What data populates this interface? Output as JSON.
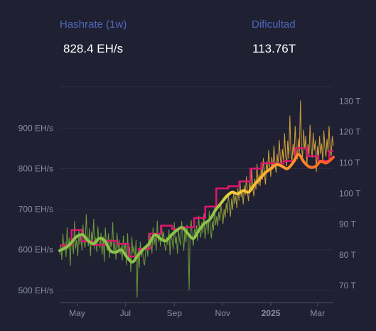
{
  "stats": [
    {
      "label": "Hashrate (1w)",
      "value": "828.4 EH/s"
    },
    {
      "label": "Dificultad",
      "value": "113.76T"
    }
  ],
  "colors": {
    "background": "#1f2133",
    "label_link": "#4f66b8",
    "grid": "#2c2f42",
    "axis_text": "#8a8da3",
    "difficulty_line": "#e0166f",
    "hashrate_raw_low": "#7cae3a",
    "hashrate_raw_high": "#f2b43a",
    "hashrate_avg_low": "#8bc34a",
    "hashrate_avg_mid": "#f5d23c",
    "hashrate_avg_high": "#ff5a1f"
  },
  "chart_data": {
    "type": "line",
    "x_axis": {
      "type": "date",
      "range": [
        "2024-04-09",
        "2025-03-21"
      ],
      "ticks": [
        "May",
        "Jul",
        "Sep",
        "Nov",
        "2025",
        "Mar"
      ],
      "tick_dates": [
        "2024-05-01",
        "2024-07-01",
        "2024-09-01",
        "2024-11-01",
        "2025-01-01",
        "2025-03-01"
      ]
    },
    "y_left": {
      "ticks": [
        "500 EH/s",
        "600 EH/s",
        "700 EH/s",
        "800 EH/s",
        "900 EH/s"
      ],
      "tick_values": [
        500,
        600,
        700,
        800,
        900
      ],
      "range": [
        470,
        1002
      ],
      "unit": "EH/s"
    },
    "y_right": {
      "ticks": [
        "70 T",
        "80 T",
        "90 T",
        "100 T",
        "110 T",
        "120 T",
        "130 T"
      ],
      "tick_values": [
        70,
        80,
        90,
        100,
        110,
        120,
        130
      ],
      "range": [
        64.5,
        134.7
      ],
      "unit": "T"
    },
    "grid": true,
    "series": [
      {
        "key": "hashrate_avg",
        "axis": "left",
        "style": "thick-gradient",
        "points": [
          [
            "2024-04-09",
            598
          ],
          [
            "2024-04-20",
            610
          ],
          [
            "2024-04-30",
            632
          ],
          [
            "2024-05-08",
            637
          ],
          [
            "2024-05-15",
            622
          ],
          [
            "2024-05-22",
            615
          ],
          [
            "2024-05-29",
            628
          ],
          [
            "2024-06-05",
            622
          ],
          [
            "2024-06-12",
            598
          ],
          [
            "2024-06-19",
            594
          ],
          [
            "2024-06-26",
            600
          ],
          [
            "2024-07-03",
            582
          ],
          [
            "2024-07-10",
            570
          ],
          [
            "2024-07-17",
            587
          ],
          [
            "2024-07-24",
            602
          ],
          [
            "2024-07-31",
            615
          ],
          [
            "2024-08-07",
            637
          ],
          [
            "2024-08-14",
            628
          ],
          [
            "2024-08-21",
            622
          ],
          [
            "2024-08-28",
            636
          ],
          [
            "2024-09-04",
            648
          ],
          [
            "2024-09-11",
            655
          ],
          [
            "2024-09-18",
            640
          ],
          [
            "2024-09-25",
            628
          ],
          [
            "2024-10-02",
            648
          ],
          [
            "2024-10-09",
            665
          ],
          [
            "2024-10-16",
            675
          ],
          [
            "2024-10-23",
            698
          ],
          [
            "2024-10-30",
            715
          ],
          [
            "2024-11-06",
            732
          ],
          [
            "2024-11-13",
            742
          ],
          [
            "2024-11-20",
            738
          ],
          [
            "2024-11-27",
            746
          ],
          [
            "2024-12-04",
            742
          ],
          [
            "2024-12-11",
            760
          ],
          [
            "2024-12-18",
            775
          ],
          [
            "2024-12-25",
            790
          ],
          [
            "2025-01-01",
            800
          ],
          [
            "2025-01-08",
            810
          ],
          [
            "2025-01-15",
            806
          ],
          [
            "2025-01-22",
            800
          ],
          [
            "2025-01-29",
            815
          ],
          [
            "2025-02-05",
            835
          ],
          [
            "2025-02-12",
            816
          ],
          [
            "2025-02-19",
            804
          ],
          [
            "2025-02-26",
            805
          ],
          [
            "2025-03-05",
            818
          ],
          [
            "2025-03-12",
            814
          ],
          [
            "2025-03-21",
            828
          ]
        ]
      },
      {
        "key": "difficulty",
        "axis": "right",
        "style": "step",
        "points": [
          [
            "2024-04-09",
            83.1
          ],
          [
            "2024-04-24",
            88.1
          ],
          [
            "2024-05-07",
            84.4
          ],
          [
            "2024-05-21",
            83.3
          ],
          [
            "2024-06-06",
            84.6
          ],
          [
            "2024-06-20",
            83.6
          ],
          [
            "2024-07-05",
            79.5
          ],
          [
            "2024-07-18",
            82.0
          ],
          [
            "2024-08-01",
            86.9
          ],
          [
            "2024-08-15",
            89.5
          ],
          [
            "2024-08-29",
            88.4
          ],
          [
            "2024-09-12",
            89.0
          ],
          [
            "2024-09-26",
            92.0
          ],
          [
            "2024-10-10",
            95.7
          ],
          [
            "2024-10-24",
            101.6
          ],
          [
            "2024-11-08",
            102.3
          ],
          [
            "2024-11-22",
            103.9
          ],
          [
            "2024-12-06",
            108.1
          ],
          [
            "2024-12-20",
            109.8
          ],
          [
            "2025-01-04",
            109.7
          ],
          [
            "2025-01-17",
            110.5
          ],
          [
            "2025-02-01",
            114.7
          ],
          [
            "2025-02-16",
            112.1
          ],
          [
            "2025-03-02",
            110.6
          ],
          [
            "2025-03-16",
            113.8
          ],
          [
            "2025-03-21",
            113.8
          ]
        ]
      }
    ],
    "raw_hashrate": {
      "axis": "left",
      "style": "thin-noisy",
      "start": "2024-04-09",
      "step_days": 1,
      "values": [
        588,
        612,
        575,
        640,
        598,
        620,
        582,
        655,
        601,
        630,
        560,
        642,
        615,
        590,
        671,
        603,
        625,
        584,
        648,
        612,
        639,
        598,
        662,
        621,
        605,
        688,
        632,
        609,
        653,
        584,
        645,
        618,
        676,
        602,
        631,
        594,
        658,
        621,
        604,
        642,
        588,
        633,
        571,
        655,
        612,
        598,
        641,
        580,
        625,
        607,
        668,
        592,
        619,
        576,
        642,
        603,
        625,
        589,
        611,
        574,
        635,
        598,
        616,
        562,
        641,
        584,
        607,
        545,
        632,
        591,
        610,
        570,
        624,
        483,
        598,
        556,
        620,
        582,
        604,
        571,
        562,
        598,
        614,
        583,
        642,
        603,
        626,
        591,
        655,
        612,
        634,
        598,
        672,
        620,
        641,
        608,
        662,
        627,
        645,
        610,
        598,
        632,
        611,
        650,
        587,
        641,
        623,
        602,
        668,
        615,
        632,
        590,
        649,
        624,
        611,
        671,
        633,
        598,
        647,
        618,
        662,
        635,
        501,
        648,
        673,
        629,
        610,
        652,
        638,
        660,
        622,
        684,
        645,
        630,
        668,
        641,
        690,
        627,
        654,
        673,
        639,
        696,
        652,
        628,
        671,
        648,
        707,
        661,
        683,
        659,
        694,
        672,
        710,
        688,
        664,
        701,
        679,
        715,
        691,
        738,
        704,
        682,
        726,
        698,
        745,
        713,
        733,
        703,
        752,
        721,
        768,
        730,
        748,
        712,
        759,
        735,
        781,
        742,
        720,
        766,
        744,
        798,
        753,
        732,
        775,
        749,
        812,
        761,
        786,
        757,
        804,
        772,
        826,
        788,
        761,
        817,
        792,
        846,
        808,
        780,
        829,
        798,
        857,
        812,
        790,
        836,
        808,
        871,
        825,
        803,
        848,
        819,
        887,
        834,
        806,
        869,
        824,
        931,
        842,
        818,
        861,
        832,
        905,
        846,
        823,
        874,
        838,
        968,
        851,
        829,
        896,
        847,
        881,
        806,
        860,
        834,
        908,
        852,
        827,
        889,
        845,
        870,
        792,
        855,
        823,
        880,
        836,
        862,
        815,
        894,
        851,
        829,
        873,
        842,
        905,
        848,
        831,
        880,
        856
      ],
      "spikes": [
        [
          "2024-06-18",
          550
        ],
        [
          "2024-07-03",
          483
        ],
        [
          "2024-08-04",
          501
        ],
        [
          "2024-09-08",
          497
        ],
        [
          "2024-11-11",
          775
        ],
        [
          "2024-12-08",
          731
        ],
        [
          "2025-01-27",
          985
        ],
        [
          "2025-02-09",
          958
        ],
        [
          "2025-03-14",
          760
        ],
        [
          "2025-03-21",
          880
        ]
      ]
    }
  }
}
